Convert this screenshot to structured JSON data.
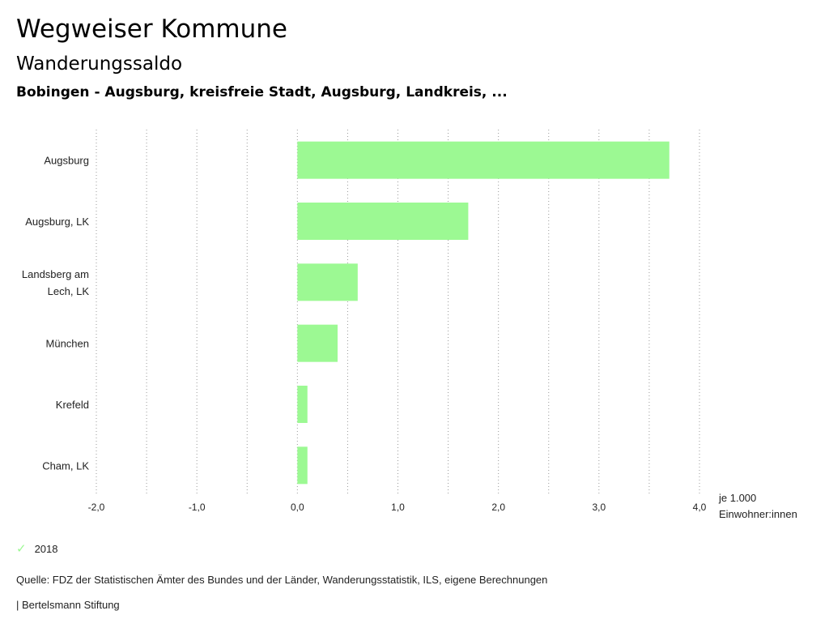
{
  "header": {
    "title": "Wegweiser Kommune",
    "subtitle": "Wanderungssaldo",
    "region": "Bobingen - Augsburg, kreisfreie Stadt, Augsburg, Landkreis, ..."
  },
  "unit": {
    "line1": "je 1.000",
    "line2": "Einwohner:innen"
  },
  "legend": {
    "label": "2018",
    "icon": "check-icon"
  },
  "footer": {
    "source": "Quelle: FDZ der Statistischen Ämter des Bundes und der Länder, Wanderungsstatistik, ILS, eigene Berechnungen",
    "brand": "| Bertelsmann Stiftung"
  },
  "colors": {
    "bar": "#9cf993",
    "grid": "#999999"
  },
  "chart_data": {
    "type": "bar",
    "orientation": "horizontal",
    "title": "Wanderungssaldo",
    "xlabel": "je 1.000 Einwohner:innen",
    "categories": [
      [
        "Augsburg"
      ],
      [
        "Augsburg, LK"
      ],
      [
        "Landsberg am",
        "Lech, LK"
      ],
      [
        "München"
      ],
      [
        "Krefeld"
      ],
      [
        "Cham, LK"
      ]
    ],
    "series": [
      {
        "name": "2018",
        "values": [
          3.7,
          1.7,
          0.6,
          0.4,
          0.1,
          0.1
        ]
      }
    ],
    "xlim": [
      -2,
      4
    ],
    "ticks": [
      -2,
      -1,
      0,
      1,
      2,
      3,
      4
    ],
    "tick_labels": [
      "-2,0",
      "-1,0",
      "0,0",
      "1,0",
      "2,0",
      "3,0",
      "4,0"
    ],
    "grid": true,
    "legend_position": "bottom-left"
  }
}
